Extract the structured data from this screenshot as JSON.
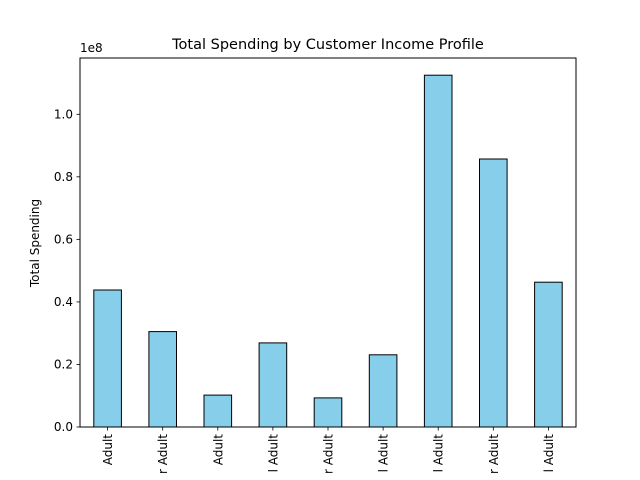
{
  "chart_data": {
    "type": "bar",
    "title": "Total Spending by Customer Income Profile",
    "xlabel": "",
    "ylabel": "Total Spending",
    "y_scale_label": "1e8",
    "ylim": [
      0,
      118000000
    ],
    "yticks": [
      0.0,
      0.2,
      0.4,
      0.6,
      0.8,
      1.0
    ],
    "categories": [
      "Adult",
      "Adult",
      "Adult",
      "Adult",
      "Adult",
      "Adult",
      "Adult",
      "Adult",
      "Adult"
    ],
    "category_fragments": [
      "Adult",
      "r Adult",
      "Adult",
      "l Adult",
      "r Adult",
      "l Adult",
      "l Adult",
      "r Adult",
      "l Adult"
    ],
    "values": [
      43800000,
      30500000,
      10200000,
      26900000,
      9300000,
      23100000,
      112500000,
      85700000,
      46300000
    ],
    "bar_color": "#87CEEB",
    "edge_color": "#000000",
    "grid": false,
    "legend": "none"
  }
}
